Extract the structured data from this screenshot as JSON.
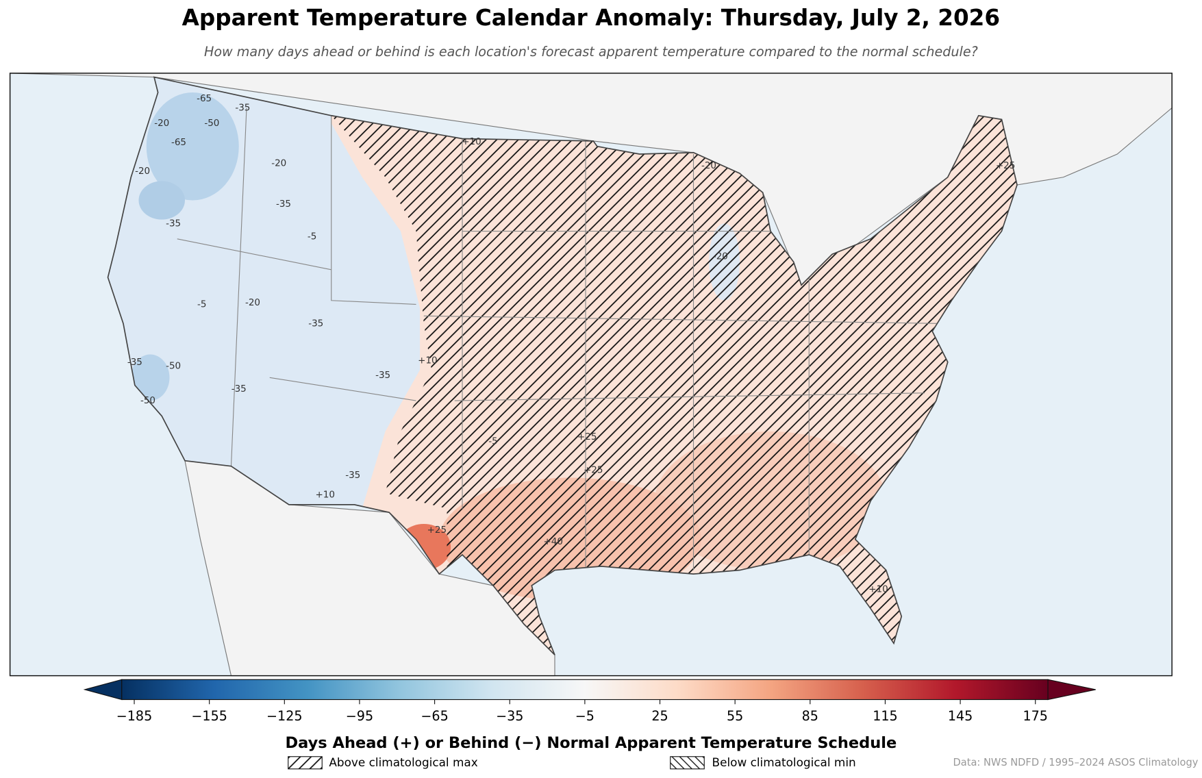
{
  "header": {
    "title": "Apparent Temperature Calendar Anomaly: Thursday, July 2, 2026",
    "subtitle": "How many days ahead or behind is each location's forecast apparent temperature compared to the normal schedule?"
  },
  "map": {
    "contour_labels": [
      "-65",
      "-50",
      "-35",
      "-20",
      "-65",
      "-20",
      "-35",
      "-20",
      "-5",
      "-35",
      "-20",
      "-50",
      "-35",
      "-50",
      "-35",
      "-5",
      "+10",
      "-20",
      "+25",
      "+25",
      "+25",
      "+10",
      "+10",
      "-5",
      "+25",
      "+40",
      "+10",
      "-20",
      "-35",
      "-35",
      "-35"
    ]
  },
  "colorbar": {
    "label": "Days Ahead (+) or Behind (−) Normal Apparent Temperature Schedule",
    "lim": [
      -190,
      180
    ],
    "ticks": [
      {
        "value": -185,
        "label": "−185"
      },
      {
        "value": -155,
        "label": "−155"
      },
      {
        "value": -125,
        "label": "−125"
      },
      {
        "value": -95,
        "label": "−95"
      },
      {
        "value": -65,
        "label": "−65"
      },
      {
        "value": -35,
        "label": "−35"
      },
      {
        "value": -5,
        "label": "−5"
      },
      25,
      55,
      85,
      115,
      145,
      175
    ],
    "colors": [
      "#053061",
      "#2166ac",
      "#4393c3",
      "#92c5de",
      "#d1e5f0",
      "#f7f7f7",
      "#fddbc7",
      "#f4a582",
      "#d6604d",
      "#b2182b",
      "#67001f"
    ]
  },
  "legend": [
    "Above climatological max",
    "Below climatological min"
  ],
  "source": "Data: NWS NDFD / 1995–2024 ASOS Climatology"
}
